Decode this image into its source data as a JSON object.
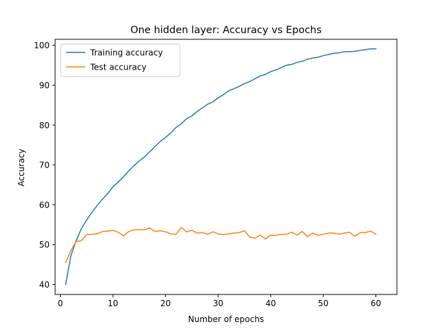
{
  "chart_data": {
    "type": "line",
    "title": "One hidden layer: Accuracy vs Epochs",
    "xlabel": "Number of epochs",
    "ylabel": "Accuracy",
    "xlim": [
      -1,
      64
    ],
    "ylim": [
      37.5,
      101.5
    ],
    "xticks": [
      0,
      10,
      20,
      30,
      40,
      50,
      60
    ],
    "yticks": [
      40,
      50,
      60,
      70,
      80,
      90,
      100
    ],
    "grid": false,
    "legend": "top-left",
    "series": [
      {
        "name": "Training accuracy",
        "color": "#1f77b4",
        "x": [
          1,
          2,
          3,
          4,
          5,
          6,
          7,
          8,
          9,
          10,
          11,
          12,
          13,
          14,
          15,
          16,
          17,
          18,
          19,
          20,
          21,
          22,
          23,
          24,
          25,
          26,
          27,
          28,
          29,
          30,
          31,
          32,
          33,
          34,
          35,
          36,
          37,
          38,
          39,
          40,
          41,
          42,
          43,
          44,
          45,
          46,
          47,
          48,
          49,
          50,
          51,
          52,
          53,
          54,
          55,
          56,
          57,
          58,
          59,
          60
        ],
        "y": [
          40.0,
          47.2,
          51.0,
          54.0,
          56.2,
          58.1,
          59.8,
          61.4,
          62.8,
          64.5,
          65.7,
          67.0,
          68.5,
          69.8,
          71.0,
          72.0,
          73.3,
          74.6,
          75.9,
          76.9,
          78.0,
          79.4,
          80.3,
          81.6,
          82.3,
          83.4,
          84.3,
          85.2,
          85.8,
          86.8,
          87.6,
          88.6,
          89.1,
          89.7,
          90.4,
          90.9,
          91.6,
          92.3,
          92.7,
          93.4,
          93.8,
          94.4,
          95.0,
          95.2,
          95.7,
          96.0,
          96.5,
          96.8,
          97.0,
          97.4,
          97.7,
          98.0,
          98.1,
          98.4,
          98.4,
          98.5,
          98.7,
          98.9,
          99.1,
          99.1
        ]
      },
      {
        "name": "Test accuracy",
        "color": "#ff7f0e",
        "x": [
          1,
          2,
          3,
          4,
          5,
          6,
          7,
          8,
          9,
          10,
          11,
          12,
          13,
          14,
          15,
          16,
          17,
          18,
          19,
          20,
          21,
          22,
          23,
          24,
          25,
          26,
          27,
          28,
          29,
          30,
          31,
          32,
          33,
          34,
          35,
          36,
          37,
          38,
          39,
          40,
          41,
          42,
          43,
          44,
          45,
          46,
          47,
          48,
          49,
          50,
          51,
          52,
          53,
          54,
          55,
          56,
          57,
          58,
          59,
          60
        ],
        "y": [
          45.5,
          48.5,
          50.8,
          51.0,
          52.5,
          52.6,
          52.7,
          53.3,
          53.4,
          53.6,
          53.1,
          52.2,
          53.3,
          53.7,
          53.8,
          53.7,
          54.2,
          53.3,
          53.5,
          53.2,
          52.7,
          52.6,
          54.3,
          53.2,
          53.6,
          52.9,
          53.0,
          52.6,
          53.2,
          52.7,
          52.5,
          52.7,
          52.9,
          53.0,
          53.5,
          51.9,
          51.6,
          52.4,
          51.4,
          52.4,
          52.3,
          52.6,
          52.6,
          53.1,
          52.4,
          53.3,
          52.0,
          52.9,
          52.3,
          52.6,
          52.9,
          52.9,
          52.6,
          52.9,
          53.1,
          52.1,
          53.0,
          53.0,
          53.4,
          52.6
        ]
      }
    ]
  }
}
